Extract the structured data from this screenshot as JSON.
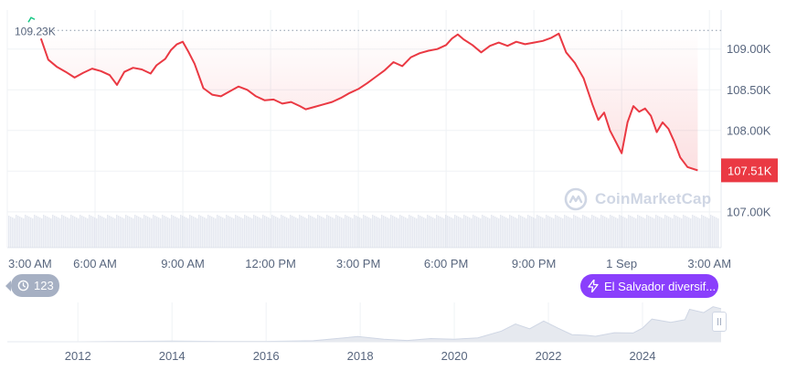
{
  "chart_data": {
    "type": "line",
    "price_axis": {
      "ticks": [
        "109.00K",
        "108.50K",
        "108.00K",
        "107.00K"
      ],
      "tick_values": [
        109000,
        108500,
        108000,
        107000
      ],
      "ylim": [
        106560,
        109480
      ]
    },
    "time_axis": {
      "ticks": [
        "3:00 AM",
        "6:00 AM",
        "9:00 AM",
        "12:00 PM",
        "3:00 PM",
        "6:00 PM",
        "9:00 PM",
        "1 Sep",
        "3:00 AM"
      ],
      "hours": [
        0,
        3,
        6,
        9,
        12,
        15,
        18,
        21,
        24
      ],
      "xlim": [
        0,
        24.4
      ]
    },
    "open_price_label": "109.23K",
    "open_price": 109230,
    "current_price_label": "107.51K",
    "current_price": 107510,
    "series": [
      {
        "color": "#ea3943",
        "points": [
          [
            1.15,
            109130
          ],
          [
            1.4,
            108870
          ],
          [
            1.7,
            108780
          ],
          [
            2.0,
            108720
          ],
          [
            2.3,
            108650
          ],
          [
            2.6,
            108710
          ],
          [
            2.9,
            108760
          ],
          [
            3.2,
            108730
          ],
          [
            3.5,
            108680
          ],
          [
            3.75,
            108560
          ],
          [
            4.0,
            108720
          ],
          [
            4.3,
            108770
          ],
          [
            4.6,
            108750
          ],
          [
            4.9,
            108700
          ],
          [
            5.1,
            108800
          ],
          [
            5.4,
            108880
          ],
          [
            5.6,
            108990
          ],
          [
            5.8,
            109060
          ],
          [
            6.0,
            109090
          ],
          [
            6.2,
            108960
          ],
          [
            6.4,
            108820
          ],
          [
            6.7,
            108520
          ],
          [
            7.0,
            108440
          ],
          [
            7.3,
            108420
          ],
          [
            7.6,
            108480
          ],
          [
            7.9,
            108540
          ],
          [
            8.2,
            108500
          ],
          [
            8.5,
            108420
          ],
          [
            8.8,
            108370
          ],
          [
            9.1,
            108380
          ],
          [
            9.4,
            108330
          ],
          [
            9.7,
            108350
          ],
          [
            10.0,
            108300
          ],
          [
            10.2,
            108260
          ],
          [
            10.5,
            108290
          ],
          [
            10.8,
            108320
          ],
          [
            11.1,
            108350
          ],
          [
            11.4,
            108400
          ],
          [
            11.7,
            108460
          ],
          [
            12.0,
            108510
          ],
          [
            12.3,
            108580
          ],
          [
            12.6,
            108660
          ],
          [
            12.9,
            108740
          ],
          [
            13.2,
            108840
          ],
          [
            13.5,
            108790
          ],
          [
            13.8,
            108900
          ],
          [
            14.1,
            108950
          ],
          [
            14.4,
            108980
          ],
          [
            14.7,
            109000
          ],
          [
            15.0,
            109050
          ],
          [
            15.2,
            109130
          ],
          [
            15.4,
            109180
          ],
          [
            15.6,
            109120
          ],
          [
            15.9,
            109050
          ],
          [
            16.2,
            108960
          ],
          [
            16.5,
            109040
          ],
          [
            16.8,
            109080
          ],
          [
            17.1,
            109040
          ],
          [
            17.4,
            109090
          ],
          [
            17.7,
            109060
          ],
          [
            18.0,
            109080
          ],
          [
            18.3,
            109100
          ],
          [
            18.6,
            109140
          ],
          [
            18.85,
            109190
          ],
          [
            19.1,
            108960
          ],
          [
            19.4,
            108830
          ],
          [
            19.7,
            108640
          ],
          [
            20.0,
            108320
          ],
          [
            20.2,
            108130
          ],
          [
            20.4,
            108220
          ],
          [
            20.6,
            108000
          ],
          [
            20.8,
            107860
          ],
          [
            21.0,
            107720
          ],
          [
            21.2,
            108100
          ],
          [
            21.4,
            108300
          ],
          [
            21.6,
            108230
          ],
          [
            21.8,
            108270
          ],
          [
            22.0,
            108180
          ],
          [
            22.2,
            107980
          ],
          [
            22.4,
            108100
          ],
          [
            22.6,
            108020
          ],
          [
            22.8,
            107860
          ],
          [
            23.0,
            107670
          ],
          [
            23.25,
            107550
          ],
          [
            23.6,
            107510
          ]
        ]
      }
    ],
    "volume": {
      "color": "#cfd6e4"
    },
    "overview": {
      "x_ticks": [
        "2012",
        "2014",
        "2016",
        "2018",
        "2020",
        "2022",
        "2024"
      ],
      "tick_years": [
        2012,
        2014,
        2016,
        2018,
        2020,
        2022,
        2024
      ],
      "xlim": [
        2010.5,
        2025.67
      ],
      "series": [
        [
          2010.5,
          0
        ],
        [
          2012,
          0
        ],
        [
          2013,
          1
        ],
        [
          2014,
          2
        ],
        [
          2015,
          1
        ],
        [
          2016,
          1
        ],
        [
          2017,
          3
        ],
        [
          2017.95,
          16
        ],
        [
          2018.5,
          8
        ],
        [
          2019,
          4
        ],
        [
          2019.5,
          10
        ],
        [
          2020,
          8
        ],
        [
          2020.5,
          12
        ],
        [
          2021.0,
          33
        ],
        [
          2021.3,
          55
        ],
        [
          2021.6,
          40
        ],
        [
          2021.9,
          64
        ],
        [
          2022.2,
          42
        ],
        [
          2022.5,
          22
        ],
        [
          2022.8,
          20
        ],
        [
          2023.0,
          17
        ],
        [
          2023.4,
          28
        ],
        [
          2023.8,
          27
        ],
        [
          2024.0,
          42
        ],
        [
          2024.2,
          70
        ],
        [
          2024.6,
          60
        ],
        [
          2024.9,
          68
        ],
        [
          2025.0,
          100
        ],
        [
          2025.3,
          90
        ],
        [
          2025.5,
          108
        ],
        [
          2025.67,
          102
        ]
      ]
    }
  },
  "watermark": "CoinMarketCap",
  "news_badge": {
    "count": "123",
    "icon": "clock-history-icon"
  },
  "event_pill": {
    "text": "El Salvador diversif...",
    "icon": "lightning-icon",
    "color": "#8a3ffc"
  },
  "colors": {
    "price_line": "#ea3943",
    "current_price_tag": "#ea3943",
    "grid": "#eff2f5",
    "axis_text": "#58667e"
  }
}
